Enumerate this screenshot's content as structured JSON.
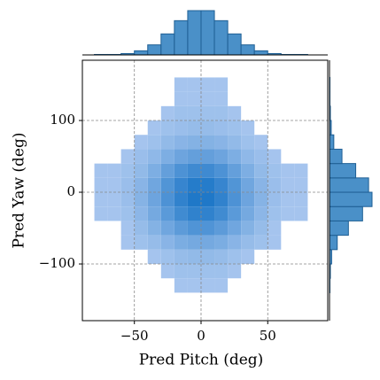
{
  "chart_data": {
    "type": "jointhist",
    "x_label": "Pred Pitch (deg)",
    "y_label": "Pred Yaw (deg)",
    "xlim": [
      -89,
      95
    ],
    "ylim": [
      -179,
      184
    ],
    "xticks": [
      {
        "value": -50,
        "label": "−50"
      },
      0,
      50
    ],
    "yticks": [
      {
        "value": -100,
        "label": "−100"
      },
      0,
      100
    ],
    "grid": true,
    "cmap": [
      "#b4cdf2",
      "#1f78c8"
    ],
    "marginal_color": "#4a90c8",
    "marginal_edge": "#1f5f94",
    "xbins": [
      -80,
      -70,
      -60,
      -50,
      -40,
      -30,
      -20,
      -10,
      0,
      10,
      20,
      30,
      40,
      50,
      60,
      70,
      80
    ],
    "ybins": [
      -140,
      -120,
      -100,
      -80,
      -60,
      -40,
      -20,
      0,
      20,
      40,
      60,
      80,
      100,
      120,
      140,
      160,
      180
    ],
    "counts": [
      [
        0,
        0,
        0,
        0,
        0,
        0,
        1,
        1,
        1,
        1,
        0,
        0,
        0,
        0,
        0,
        0
      ],
      [
        0,
        0,
        0,
        0,
        0,
        1,
        2,
        2,
        2,
        2,
        1,
        0,
        0,
        0,
        0,
        0
      ],
      [
        0,
        0,
        0,
        0,
        1,
        2,
        4,
        5,
        5,
        4,
        2,
        1,
        0,
        0,
        0,
        0
      ],
      [
        0,
        0,
        1,
        2,
        4,
        8,
        14,
        17,
        17,
        14,
        8,
        4,
        2,
        1,
        0,
        0
      ],
      [
        0,
        0,
        1,
        4,
        10,
        20,
        33,
        43,
        43,
        33,
        20,
        10,
        4,
        1,
        0,
        0
      ],
      [
        1,
        1,
        2,
        7,
        17,
        35,
        58,
        75,
        75,
        58,
        35,
        17,
        7,
        2,
        1,
        1
      ],
      [
        1,
        1,
        3,
        9,
        22,
        46,
        74,
        96,
        96,
        74,
        46,
        22,
        9,
        3,
        1,
        1
      ],
      [
        1,
        1,
        3,
        8,
        20,
        42,
        68,
        88,
        88,
        68,
        42,
        20,
        8,
        3,
        1,
        1
      ],
      [
        1,
        1,
        2,
        5,
        13,
        28,
        46,
        59,
        59,
        46,
        28,
        13,
        5,
        2,
        1,
        1
      ],
      [
        0,
        0,
        1,
        3,
        6,
        13,
        22,
        28,
        28,
        22,
        13,
        6,
        3,
        1,
        0,
        0
      ],
      [
        0,
        0,
        0,
        1,
        2,
        5,
        8,
        10,
        10,
        8,
        5,
        2,
        1,
        0,
        0,
        0
      ],
      [
        0,
        0,
        0,
        0,
        1,
        2,
        3,
        4,
        4,
        3,
        2,
        1,
        0,
        0,
        0,
        0
      ],
      [
        0,
        0,
        0,
        0,
        0,
        1,
        2,
        2,
        2,
        2,
        1,
        0,
        0,
        0,
        0,
        0
      ],
      [
        0,
        0,
        0,
        0,
        0,
        0,
        1,
        1,
        1,
        1,
        0,
        0,
        0,
        0,
        0,
        0
      ],
      [
        0,
        0,
        0,
        0,
        0,
        0,
        1,
        1,
        1,
        1,
        0,
        0,
        0,
        0,
        0,
        0
      ],
      [
        0,
        0,
        0,
        0,
        0,
        0,
        0,
        0,
        0,
        0,
        0,
        0,
        0,
        0,
        0,
        0
      ]
    ],
    "x_marginal": [
      1,
      1,
      3,
      9,
      22,
      46,
      75,
      97,
      97,
      75,
      46,
      22,
      9,
      3,
      1,
      1
    ],
    "y_marginal": [
      1,
      2,
      5,
      18,
      44,
      77,
      99,
      91,
      61,
      29,
      10,
      4,
      2,
      1,
      1,
      0
    ]
  }
}
